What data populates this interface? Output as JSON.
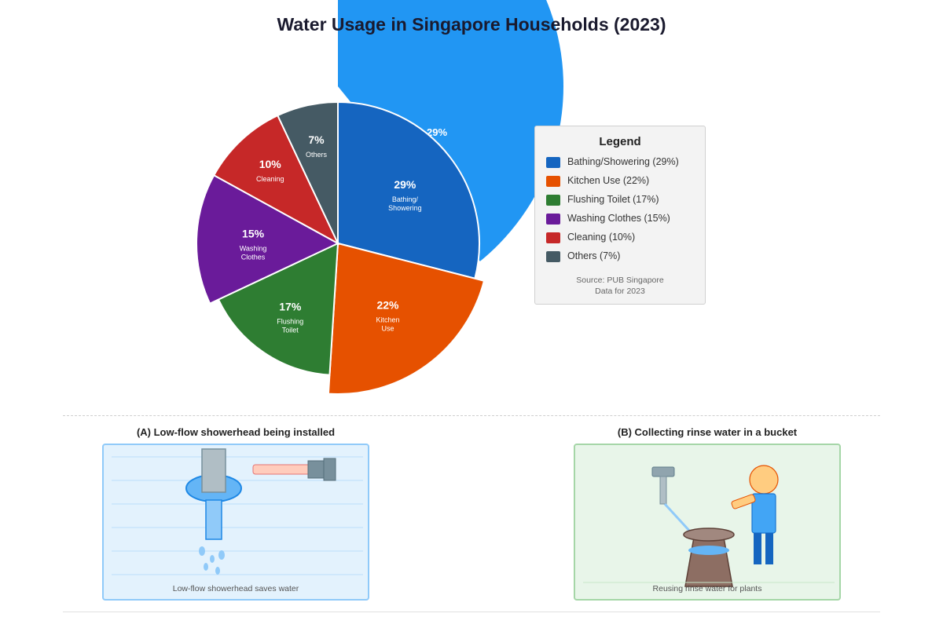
{
  "chart_data": {
    "type": "pie",
    "title": "Water Usage in Singapore Households (2023)",
    "slices": [
      {
        "label": "Bathing/ Showering",
        "value": 29,
        "display": "29%",
        "color": "#1565c0",
        "legend": "Bathing/Showering (29%)"
      },
      {
        "label": "Kitchen Use",
        "value": 22,
        "display": "22%",
        "color": "#e65100",
        "legend": "Kitchen Use (22%)"
      },
      {
        "label": "Flushing Toilet",
        "value": 17,
        "display": "17%",
        "color": "#2e7d32",
        "legend": "Flushing Toilet (17%)"
      },
      {
        "label": "Washing Clothes",
        "value": 15,
        "display": "15%",
        "color": "#6a1b9a",
        "legend": "Washing Clothes (15%)"
      },
      {
        "label": "Cleaning",
        "value": 10,
        "display": "10%",
        "color": "#c62828",
        "legend": "Cleaning (10%)"
      },
      {
        "label": "Others",
        "value": 7,
        "display": "7%",
        "color": "#455a64",
        "legend": "Others (7%)"
      }
    ],
    "highlight_color": "#2196f3",
    "legend_title": "Legend",
    "legend_placement": "right"
  },
  "source": {
    "line1": "Source: PUB Singapore",
    "line2": "Data for 2023"
  },
  "panels": {
    "a": {
      "caption": "(A) Low-flow showerhead being installed",
      "note": "Low-flow showerhead saves water"
    },
    "b": {
      "caption": "(B) Collecting rinse water in a bucket",
      "note": "Reusing rinse water for plants"
    }
  }
}
